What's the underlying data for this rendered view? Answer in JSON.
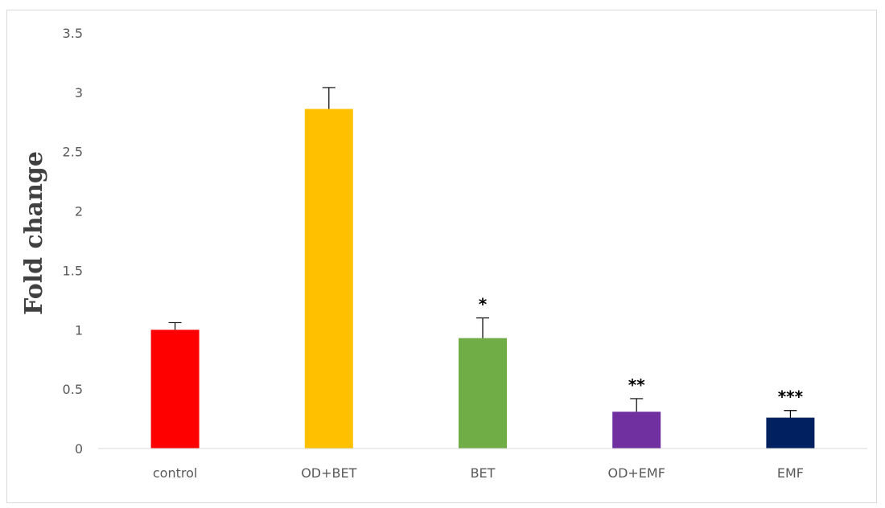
{
  "chart_data": {
    "type": "bar",
    "categories": [
      "control",
      "OD+BET",
      "BET",
      "OD+EMF",
      "EMF"
    ],
    "values": [
      1.0,
      2.86,
      0.93,
      0.31,
      0.26
    ],
    "errors": [
      0.06,
      0.18,
      0.17,
      0.11,
      0.06
    ],
    "significance": [
      "",
      "",
      "*",
      "**",
      "***"
    ],
    "colors": [
      "#ff0000",
      "#ffc000",
      "#70ad47",
      "#7030a0",
      "#002060"
    ],
    "ylabel": "Fold change",
    "xlabel": "",
    "ylim": [
      0,
      3.5
    ],
    "yticks": [
      "0",
      "0.5",
      "1",
      "1.5",
      "2",
      "2.5",
      "3",
      "3.5"
    ],
    "grid": false
  }
}
